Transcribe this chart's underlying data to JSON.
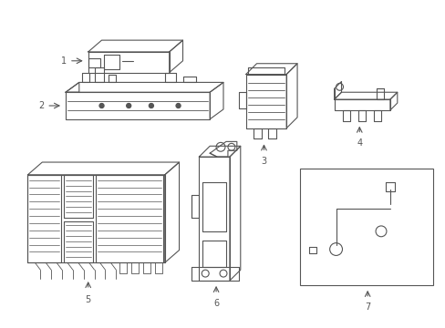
{
  "bg_color": "#ffffff",
  "line_color": "#555555",
  "line_width": 0.8,
  "fig_width": 4.89,
  "fig_height": 3.6,
  "dpi": 100
}
